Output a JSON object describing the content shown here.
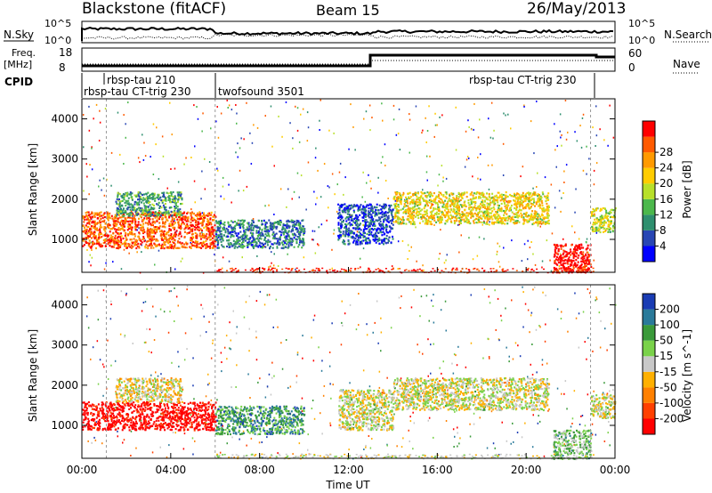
{
  "header": {
    "station": "Blackstone (fitACF)",
    "beam": "Beam 15",
    "date": "26/May/2013"
  },
  "top_panels": {
    "nsky_label": "N.Sky",
    "nsearch_label": "N.Search",
    "nsky_ticks": [
      "10^5",
      "10^0"
    ],
    "nsearch_ticks": [
      "10^5",
      "10^0"
    ],
    "freq_label_line1": "Freq.",
    "freq_label_line2": "[MHz]",
    "freq_ticks": [
      "18",
      "8"
    ],
    "nave_label": "Nave",
    "nave_ticks": [
      "60",
      "0"
    ],
    "cpid_label": "CPID",
    "cpid_segments": [
      {
        "label": "rbsp-tau 210",
        "start_hour": 0.9,
        "end_hour": 2.3
      },
      {
        "label": "rbsp-tau CT-trig 230",
        "start_hour": 0.0,
        "end_hour": 6.0
      },
      {
        "label": "twofsound 3501",
        "start_hour": 6.0,
        "end_hour": 22.9
      },
      {
        "label": "rbsp-tau CT-trig 230",
        "start_hour": 22.9,
        "end_hour": 24.0
      }
    ]
  },
  "chart_data": [
    {
      "type": "heatmap",
      "title": "Power",
      "xlabel": "Time UT",
      "ylabel": "Slant Range [km]",
      "xlim_hours": [
        0,
        24
      ],
      "ylim": [
        180,
        4500
      ],
      "x_ticks": [
        "00:00",
        "04:00",
        "08:00",
        "12:00",
        "16:00",
        "20:00",
        "00:00"
      ],
      "y_ticks": [
        1000,
        2000,
        3000,
        4000
      ],
      "colorbar_label": "Power [dB]",
      "colorbar_ticks": [
        4,
        8,
        12,
        16,
        20,
        24,
        28
      ],
      "colorbar_colors": [
        "#0000ff",
        "#2846b4",
        "#2f8f6f",
        "#4cb84c",
        "#b8e02a",
        "#ffcc00",
        "#ff9a00",
        "#ff5a00",
        "#ff0000"
      ],
      "scatter_bands": [
        {
          "t0": 0.0,
          "t1": 6.0,
          "r0": 800,
          "r1": 1700,
          "value": 24
        },
        {
          "t0": 1.5,
          "t1": 4.5,
          "r0": 1600,
          "r1": 2200,
          "value": 12
        },
        {
          "t0": 6.0,
          "t1": 10.0,
          "r0": 800,
          "r1": 1500,
          "value": 10
        },
        {
          "t0": 11.5,
          "t1": 14.0,
          "r0": 900,
          "r1": 1900,
          "value": 8
        },
        {
          "t0": 14.0,
          "t1": 21.0,
          "r0": 1400,
          "r1": 2200,
          "value": 18
        },
        {
          "t0": 21.2,
          "t1": 22.9,
          "r0": 180,
          "r1": 900,
          "value": 28
        },
        {
          "t0": 22.9,
          "t1": 24.0,
          "r0": 1200,
          "r1": 1800,
          "value": 16
        }
      ]
    },
    {
      "type": "heatmap",
      "title": "Velocity",
      "xlabel": "Time UT",
      "ylabel": "Slant Range [km]",
      "xlim_hours": [
        0,
        24
      ],
      "ylim": [
        180,
        4500
      ],
      "x_ticks": [
        "00:00",
        "04:00",
        "08:00",
        "12:00",
        "16:00",
        "20:00",
        "00:00"
      ],
      "y_ticks": [
        1000,
        2000,
        3000,
        4000
      ],
      "colorbar_label": "Velocity [m s^-1]",
      "colorbar_ticks": [
        200,
        100,
        50,
        15,
        -15,
        -50,
        -100,
        -200
      ],
      "colorbar_colors": [
        "#1a3cb4",
        "#2a7a9a",
        "#3a9a3a",
        "#7ad24a",
        "#c8c8c8",
        "#ffb000",
        "#ff8000",
        "#ff4000",
        "#ff0000"
      ],
      "scatter_bands": [
        {
          "t0": 0.0,
          "t1": 6.0,
          "r0": 900,
          "r1": 1600,
          "value": -200
        },
        {
          "t0": 1.5,
          "t1": 4.5,
          "r0": 1600,
          "r1": 2200,
          "value": -15
        },
        {
          "t0": 6.0,
          "t1": 10.0,
          "r0": 800,
          "r1": 1500,
          "value": 100
        },
        {
          "t0": 11.5,
          "t1": 14.0,
          "r0": 900,
          "r1": 1900,
          "value": 0
        },
        {
          "t0": 14.0,
          "t1": 21.0,
          "r0": 1400,
          "r1": 2200,
          "value": 0
        },
        {
          "t0": 21.2,
          "t1": 22.9,
          "r0": 180,
          "r1": 900,
          "value": 50
        },
        {
          "t0": 22.9,
          "t1": 24.0,
          "r0": 1200,
          "r1": 1800,
          "value": 0
        }
      ]
    }
  ]
}
